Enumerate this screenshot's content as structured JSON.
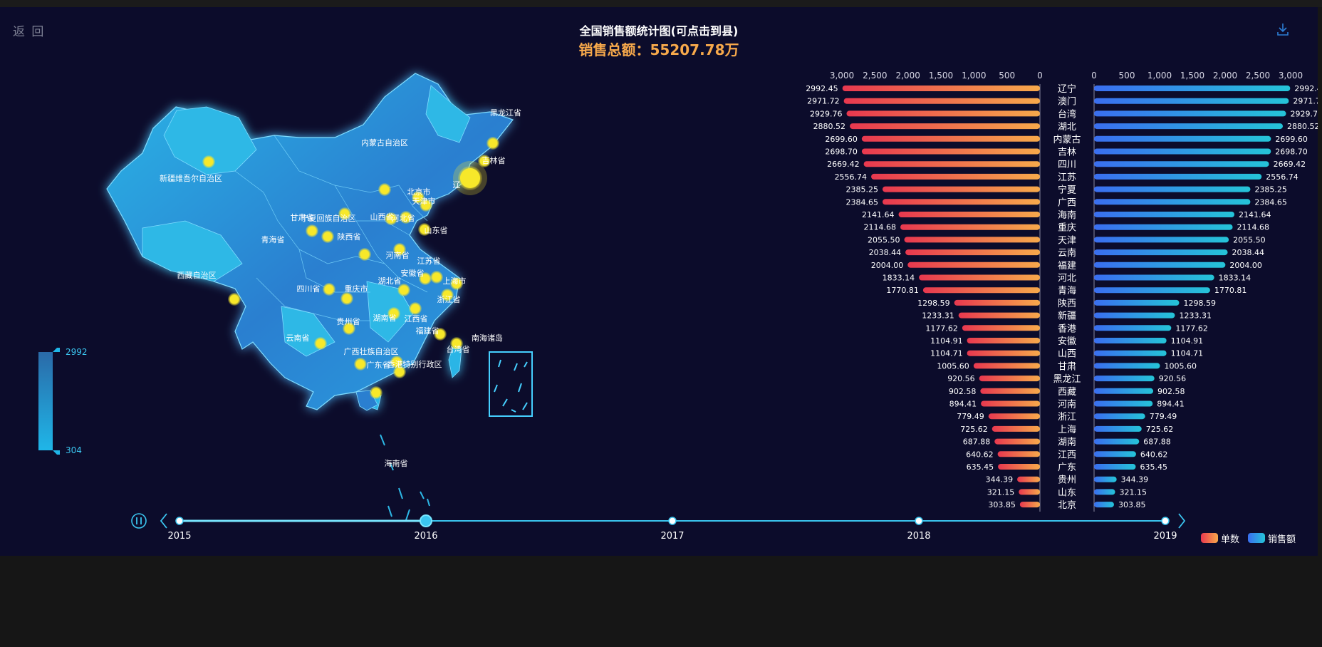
{
  "header": {
    "back_label": "返 回",
    "title": "全国销售额统计图(可点击到县)",
    "total_label": "销售总额：55207.78万"
  },
  "map": {
    "labels": [
      "黑龙江省",
      "吉林省",
      "内蒙古自治区",
      "新疆维吾尔自治区",
      "辽",
      "北京市",
      "天津市",
      "河北省",
      "山东省",
      "宁夏回族自治区",
      "山西省",
      "甘肃省",
      "青海省",
      "陕西省",
      "河南省",
      "江苏省",
      "安徽省",
      "上海市",
      "西藏自治区",
      "四川省",
      "重庆市",
      "湖北省",
      "浙江省",
      "贵州省",
      "湖南省",
      "江西省",
      "福建省",
      "南海诸岛",
      "台湾省",
      "云南省",
      "广西壮族自治区",
      "广东省",
      "香港特别行政区",
      "海南省"
    ],
    "colors": {
      "land": "#2a7fd0",
      "land_light": "#2db8e6",
      "border": "#7fdcff",
      "glow": "#1d9bf0",
      "point": "#f7e82a"
    }
  },
  "visual_map": {
    "max_label": "2992",
    "min_label": "304",
    "colors": [
      "#1fb6e8",
      "#2a6aa8"
    ]
  },
  "timeline": {
    "years": [
      "2015",
      "2016",
      "2017",
      "2018",
      "2019"
    ],
    "current": "2016"
  },
  "legend": {
    "items": [
      {
        "name": "单数",
        "color": "#f0575a"
      },
      {
        "name": "销售额",
        "color": "#3a8cf0"
      }
    ]
  },
  "chart_data": {
    "type": "bar",
    "title": "全国销售额统计图(可点击到县)",
    "categories": [
      "辽宁",
      "澳门",
      "台湾",
      "湖北",
      "内蒙古",
      "吉林",
      "四川",
      "江苏",
      "宁夏",
      "广西",
      "海南",
      "重庆",
      "天津",
      "云南",
      "福建",
      "河北",
      "青海",
      "陕西",
      "新疆",
      "香港",
      "安徽",
      "山西",
      "甘肃",
      "黑龙江",
      "西藏",
      "河南",
      "浙江",
      "上海",
      "湖南",
      "江西",
      "广东",
      "贵州",
      "山东",
      "北京"
    ],
    "series": [
      {
        "name": "单数",
        "values": [
          2992.45,
          2971.72,
          2929.76,
          2880.52,
          2699.6,
          2698.7,
          2669.42,
          2556.74,
          2385.25,
          2384.65,
          2141.64,
          2114.68,
          2055.5,
          2038.44,
          2004.0,
          1833.14,
          1770.81,
          1298.59,
          1233.31,
          1177.62,
          1104.91,
          1104.71,
          1005.6,
          920.56,
          902.58,
          894.41,
          779.49,
          725.62,
          687.88,
          640.62,
          635.45,
          344.39,
          321.15,
          303.85
        ]
      },
      {
        "name": "销售额",
        "values": [
          2992.45,
          2971.72,
          2929.76,
          2880.52,
          2699.6,
          2698.7,
          2669.42,
          2556.74,
          2385.25,
          2384.65,
          2141.64,
          2114.68,
          2055.5,
          2038.44,
          2004.0,
          1833.14,
          1770.81,
          1298.59,
          1233.31,
          1177.62,
          1104.91,
          1104.71,
          1005.6,
          920.56,
          902.58,
          894.41,
          779.49,
          725.62,
          687.88,
          640.62,
          635.45,
          344.39,
          321.15,
          303.85
        ]
      }
    ],
    "xlim": [
      0,
      3000
    ],
    "ticks": [
      "3,000",
      "2,500",
      "2,000",
      "1,500",
      "1,000",
      "500",
      "0"
    ],
    "ticks_right": [
      "0",
      "500",
      "1,000",
      "1,500",
      "2,000",
      "2,500",
      "3,000"
    ],
    "value_labels": [
      "2992.45",
      "2971.72",
      "2929.76",
      "2880.52",
      "2699.60",
      "2698.70",
      "2669.42",
      "2556.74",
      "2385.25",
      "2384.65",
      "2141.64",
      "2114.68",
      "2055.50",
      "2038.44",
      "2004.00",
      "1833.14",
      "1770.81",
      "1298.59",
      "1233.31",
      "1177.62",
      "1104.91",
      "1104.71",
      "1005.60",
      "920.56",
      "902.58",
      "894.41",
      "779.49",
      "725.62",
      "687.88",
      "640.62",
      "635.45",
      "344.39",
      "321.15",
      "303.85"
    ],
    "colors": {
      "left": [
        "#e8384f",
        "#f7a94b"
      ],
      "right": [
        "#3a6ef0",
        "#25c4d8"
      ]
    }
  }
}
